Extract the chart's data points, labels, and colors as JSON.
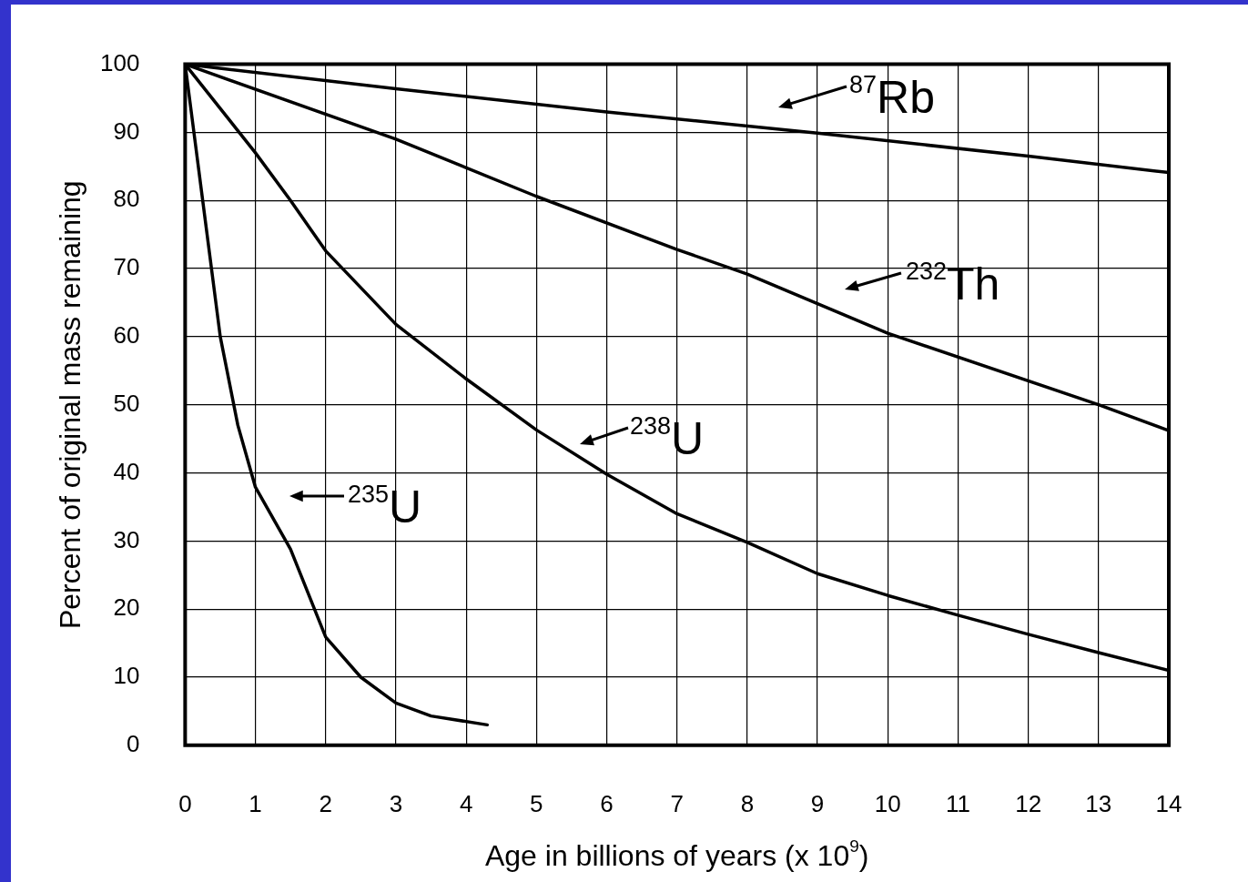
{
  "chart_data": {
    "type": "line",
    "xlabel": "Age in billions of years (x 10$^{9}$)",
    "ylabel": "Percent of original mass remaining",
    "xlim": [
      0,
      14
    ],
    "xticks": [
      0,
      1,
      2,
      3,
      4,
      5,
      6,
      7,
      8,
      9,
      10,
      11,
      12,
      13,
      14
    ],
    "ylim": [
      0,
      100
    ],
    "yticks": [
      0,
      10,
      20,
      30,
      40,
      50,
      60,
      70,
      80,
      90,
      100
    ],
    "grid": true,
    "legend": false,
    "marker": "none",
    "line_style": "solid",
    "series": [
      {
        "color": "#000000",
        "x": [
          0,
          3,
          6,
          9,
          12,
          14
        ],
        "values": [
          100,
          96.4,
          93,
          89.9,
          86.5,
          84.1
        ]
      },
      {
        "color": "#000000",
        "x": [
          0,
          3,
          5,
          7,
          8,
          10,
          13,
          14
        ],
        "values": [
          100,
          89,
          80.6,
          72.8,
          69.2,
          60.5,
          50,
          46.2
        ]
      },
      {
        "color": "#000000",
        "x": [
          0,
          1,
          1.5,
          2,
          3,
          4,
          5,
          6,
          7,
          8,
          9,
          10,
          11,
          12,
          13,
          14
        ],
        "values": [
          100,
          87,
          80,
          72.6,
          61.8,
          53.8,
          46.3,
          39.8,
          34,
          29.8,
          25.2,
          22,
          19.1,
          16.3,
          13.6,
          11
        ]
      },
      {
        "color": "#000000",
        "x": [
          0,
          0.25,
          0.5,
          0.75,
          1,
          1.5,
          2,
          2.5,
          3,
          3.5,
          4.3
        ],
        "values": [
          100,
          80,
          60,
          47,
          37.9,
          28.8,
          15.9,
          10,
          6.2,
          4.3,
          3
        ]
      }
    ],
    "annotations": [
      "$^{87}$Rb",
      "$^{232}$Th",
      "$^{238}$U",
      "$^{235}$U"
    ]
  }
}
